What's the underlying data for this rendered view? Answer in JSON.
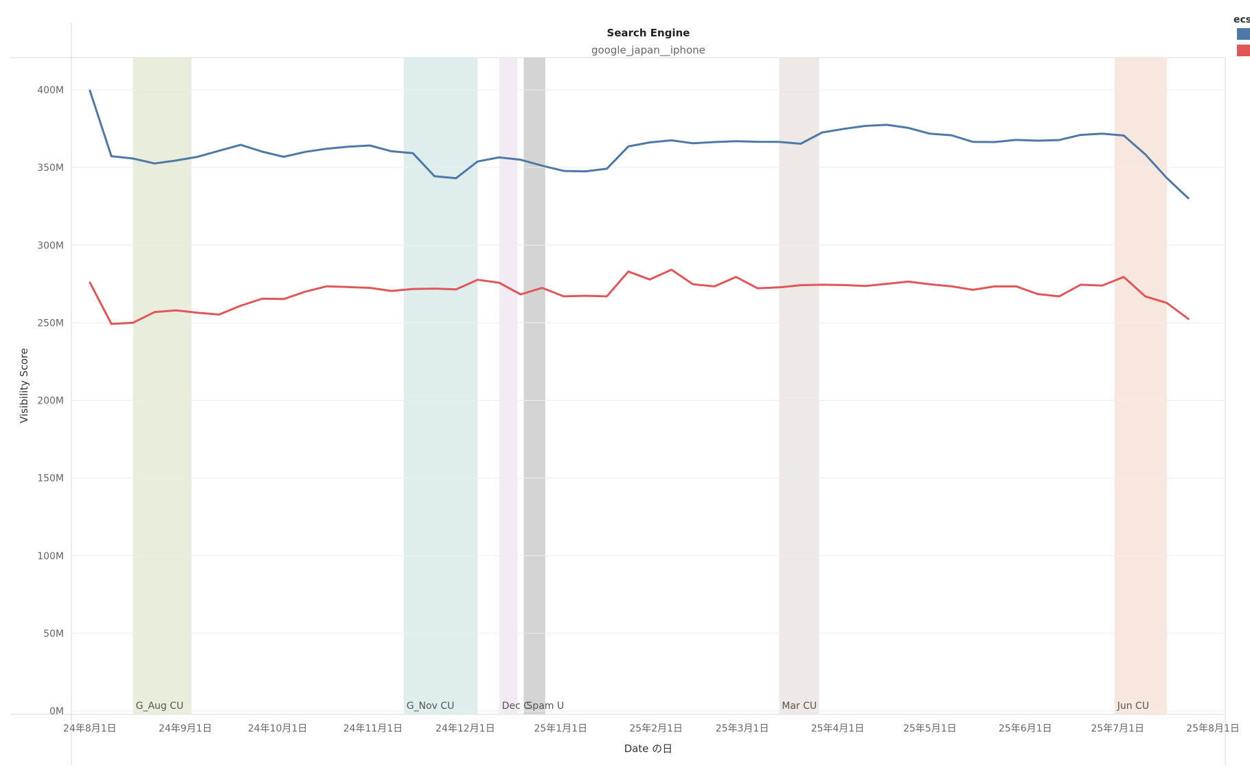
{
  "chart_data": {
    "type": "line",
    "header_title": "Search Engine",
    "header_value": "google_japan__iphone",
    "xlabel": "Date の日",
    "ylabel": "Visibility Score",
    "ylim": [
      0,
      400
    ],
    "yticks": [
      {
        "value": 0,
        "label": "0M"
      },
      {
        "value": 50,
        "label": "50M"
      },
      {
        "value": 100,
        "label": "100M"
      },
      {
        "value": 150,
        "label": "150M"
      },
      {
        "value": 200,
        "label": "200M"
      },
      {
        "value": 250,
        "label": "250M"
      },
      {
        "value": 300,
        "label": "300M"
      },
      {
        "value": 350,
        "label": "350M"
      },
      {
        "value": 400,
        "label": "400M"
      }
    ],
    "xlim": [
      "2024-07-26",
      "2025-08-05"
    ],
    "xticks": [
      {
        "date": "2024-08-01",
        "label": "24年8月1日"
      },
      {
        "date": "2024-09-01",
        "label": "24年9月1日"
      },
      {
        "date": "2024-10-01",
        "label": "24年10月1日"
      },
      {
        "date": "2024-11-01",
        "label": "24年11月1日"
      },
      {
        "date": "2024-12-01",
        "label": "24年12月1日"
      },
      {
        "date": "2025-01-01",
        "label": "25年1月1日"
      },
      {
        "date": "2025-02-01",
        "label": "25年2月1日"
      },
      {
        "date": "2025-03-01",
        "label": "25年3月1日"
      },
      {
        "date": "2025-04-01",
        "label": "25年4月1日"
      },
      {
        "date": "2025-05-01",
        "label": "25年5月1日"
      },
      {
        "date": "2025-06-01",
        "label": "25年6月1日"
      },
      {
        "date": "2025-07-01",
        "label": "25年7月1日"
      },
      {
        "date": "2025-08-01",
        "label": "25年8月1日"
      }
    ],
    "bands": [
      {
        "label": "G_Aug CU",
        "start": "2024-08-15",
        "end": "2024-09-03",
        "color": "#e8eedb"
      },
      {
        "label": "G_Nov CU",
        "start": "2024-11-11",
        "end": "2024-12-05",
        "color": "#dfeeec"
      },
      {
        "label": "Dec C",
        "start": "2024-12-12",
        "end": "2024-12-18",
        "color": "#f2ebf3"
      },
      {
        "label": "Spam U",
        "start": "2024-12-20",
        "end": "2024-12-27",
        "color": "#d4d4d4"
      },
      {
        "label": "Mar CU",
        "start": "2025-03-13",
        "end": "2025-03-26",
        "color": "#eee9e6"
      },
      {
        "label": "Jun CU",
        "start": "2025-06-30",
        "end": "2025-07-17",
        "color": "#f8e7de"
      }
    ],
    "legend": {
      "title": "ecs",
      "position": "top-right",
      "items": [
        {
          "color": "#4e79a7"
        },
        {
          "color": "#e15759"
        }
      ]
    },
    "x": [
      "2024-08-01",
      "2024-08-08",
      "2024-08-15",
      "2024-08-22",
      "2024-08-29",
      "2024-09-05",
      "2024-09-12",
      "2024-09-19",
      "2024-09-26",
      "2024-10-03",
      "2024-10-10",
      "2024-10-17",
      "2024-10-24",
      "2024-10-31",
      "2024-11-07",
      "2024-11-14",
      "2024-11-21",
      "2024-11-28",
      "2024-12-05",
      "2024-12-12",
      "2024-12-19",
      "2024-12-26",
      "2025-01-02",
      "2025-01-09",
      "2025-01-16",
      "2025-01-23",
      "2025-01-30",
      "2025-02-06",
      "2025-02-13",
      "2025-02-20",
      "2025-02-27",
      "2025-03-06",
      "2025-03-13",
      "2025-03-20",
      "2025-03-27",
      "2025-04-03",
      "2025-04-10",
      "2025-04-17",
      "2025-04-24",
      "2025-05-01",
      "2025-05-08",
      "2025-05-15",
      "2025-05-22",
      "2025-05-29",
      "2025-06-05",
      "2025-06-12",
      "2025-06-19",
      "2025-06-26",
      "2025-07-03",
      "2025-07-10",
      "2025-07-17",
      "2025-07-24"
    ],
    "series": [
      {
        "color": "#4e79a7",
        "values": [
          399.5,
          357.3,
          355.8,
          352.6,
          354.5,
          356.9,
          360.8,
          364.6,
          360.2,
          356.9,
          360.1,
          362.1,
          363.4,
          364.2,
          360.5,
          359.2,
          344.4,
          343.1,
          353.9,
          356.5,
          355.0,
          351.2,
          347.8,
          347.5,
          349.2,
          363.6,
          366.2,
          367.5,
          365.6,
          366.4,
          367.0,
          366.6,
          366.5,
          365.3,
          372.6,
          374.9,
          376.8,
          377.5,
          375.5,
          371.8,
          370.8,
          366.5,
          366.4,
          367.8,
          367.3,
          367.7,
          371.0,
          371.8,
          370.6,
          358.5,
          343.2,
          330.2
        ]
      },
      {
        "color": "#e15759",
        "values": [
          275.9,
          249.3,
          250.0,
          256.9,
          258.0,
          256.5,
          255.3,
          261.0,
          265.5,
          265.3,
          270.0,
          273.5,
          273.0,
          272.5,
          270.5,
          271.8,
          272.0,
          271.5,
          277.7,
          275.8,
          268.3,
          272.5,
          267.0,
          267.4,
          267.0,
          283.0,
          277.9,
          284.2,
          274.8,
          273.5,
          279.5,
          272.2,
          272.8,
          274.2,
          274.5,
          274.3,
          273.7,
          275.1,
          276.5,
          274.8,
          273.5,
          271.2,
          273.4,
          273.5,
          268.5,
          267.0,
          274.5,
          274.0,
          279.5,
          267.0,
          262.8,
          252.5
        ]
      }
    ]
  }
}
